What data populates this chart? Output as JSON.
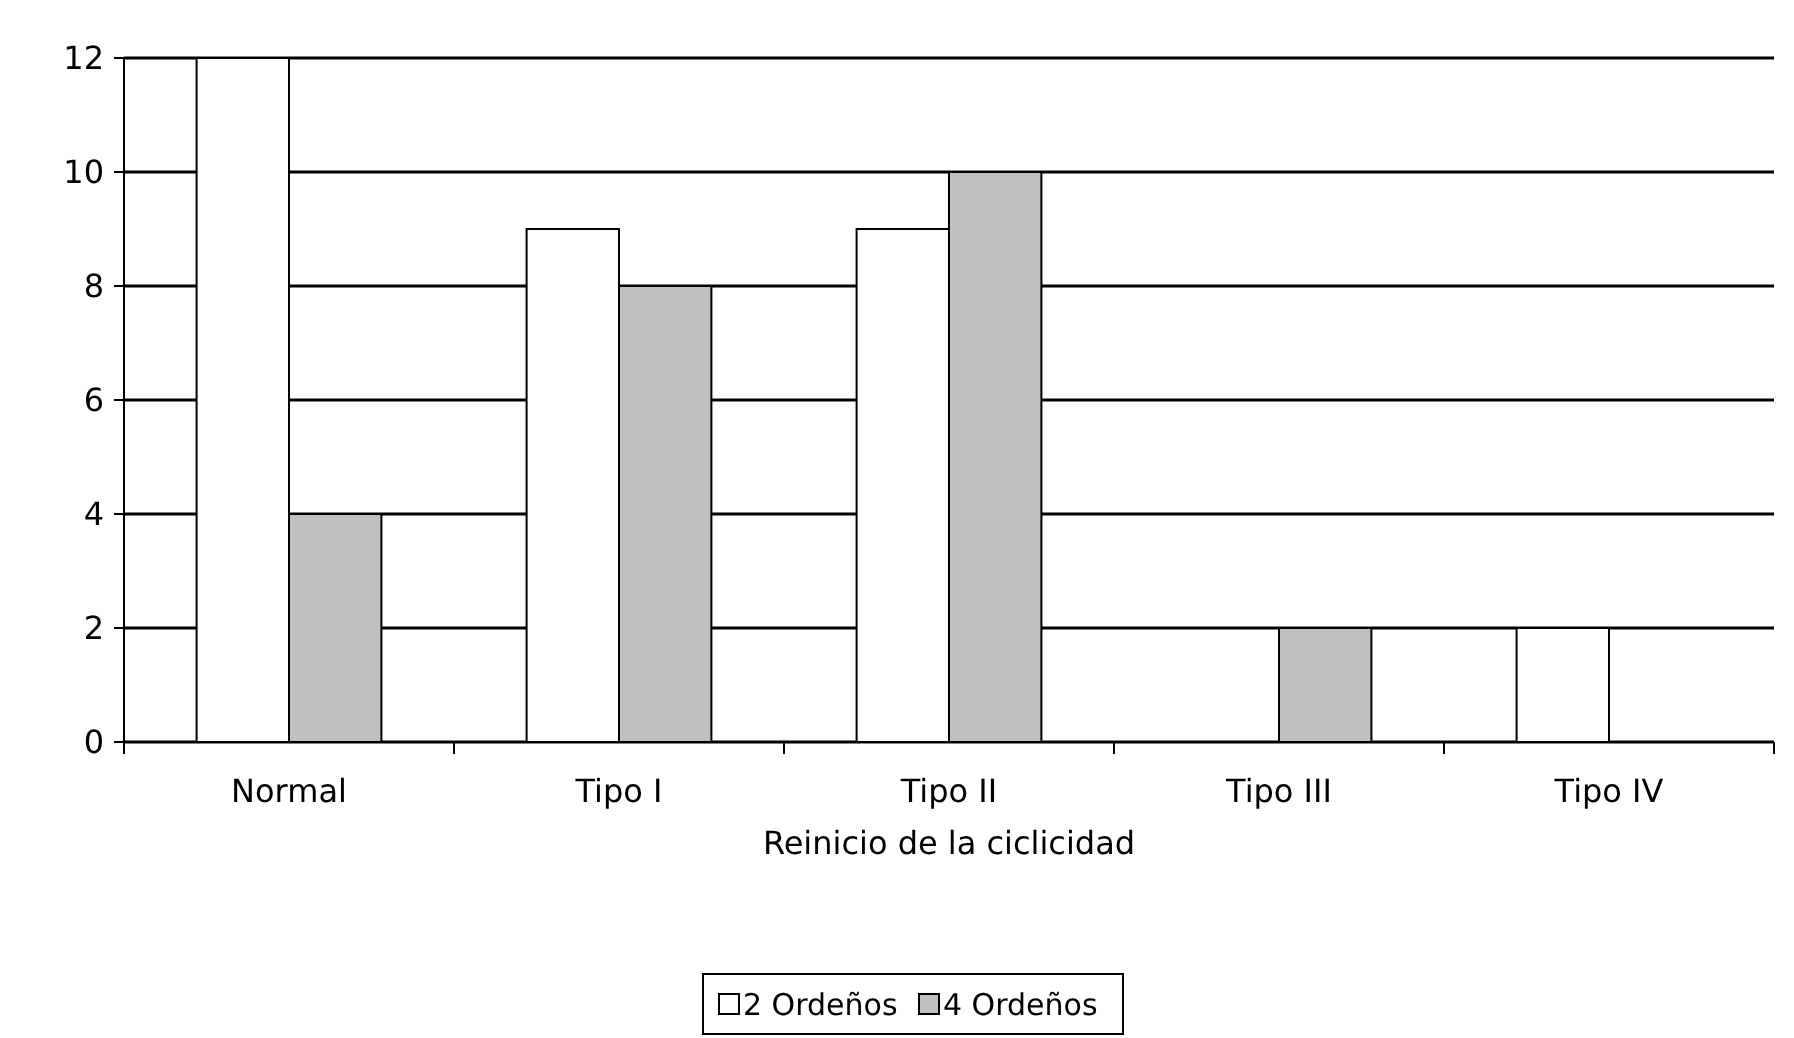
{
  "chart_data": {
    "type": "bar",
    "xlabel": "Reinicio de la ciclicidad",
    "categories": [
      "Normal",
      "Tipo I",
      "Tipo II",
      "Tipo III",
      "Tipo IV"
    ],
    "series": [
      {
        "name": "2 Ordeños",
        "color": "#ffffff",
        "values": [
          12,
          9,
          9,
          0,
          2
        ]
      },
      {
        "name": "4 Ordeños",
        "color": "#c0c0c0",
        "values": [
          4,
          8,
          10,
          2,
          0
        ]
      }
    ],
    "ylim": [
      0,
      12
    ],
    "yticks": [
      0,
      2,
      4,
      6,
      8,
      10,
      12
    ],
    "grid": "y",
    "legend": "bottom"
  }
}
